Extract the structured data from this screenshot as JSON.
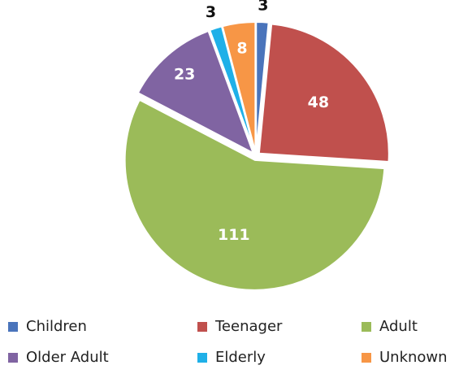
{
  "chart_data": {
    "type": "pie",
    "categories": [
      "Children",
      "Teenager",
      "Adult",
      "Older Adult",
      "Elderly",
      "Unknown"
    ],
    "values": [
      3,
      48,
      111,
      23,
      3,
      8
    ],
    "colors": [
      "#4a74bb",
      "#c0504d",
      "#9bbb59",
      "#8064a2",
      "#1fb0e8",
      "#f79646"
    ],
    "legend": "bottom"
  }
}
